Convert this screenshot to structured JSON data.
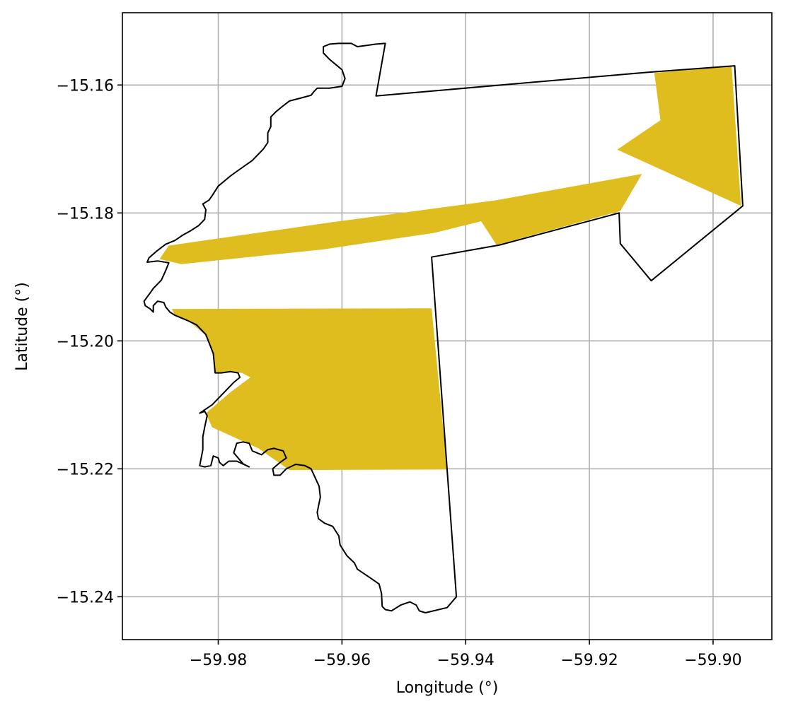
{
  "chart_data": {
    "type": "map",
    "xlabel": "Longitude (°)",
    "ylabel": "Latitude (°)",
    "xlim": [
      -59.9955,
      -59.8905
    ],
    "ylim": [
      -15.2467,
      -15.1487
    ],
    "grid": true,
    "x_ticks": [
      -59.98,
      -59.96,
      -59.94,
      -59.92,
      -59.9
    ],
    "x_tick_labels": [
      "−59.98",
      "−59.96",
      "−59.94",
      "−59.92",
      "−59.90"
    ],
    "y_ticks": [
      -15.16,
      -15.18,
      -15.2,
      -15.22,
      -15.24
    ],
    "y_tick_labels": [
      "−15.16",
      "−15.18",
      "−15.20",
      "−15.22",
      "−15.24"
    ],
    "colors": {
      "highlight_fill": "#dfbd1f",
      "boundary_stroke": "#000000",
      "grid": "#b0b0b0"
    },
    "highlight_polygons": [
      [
        [
          -59.988,
          -15.1851
        ],
        [
          -59.962,
          -15.1815
        ],
        [
          -59.935,
          -15.178
        ],
        [
          -59.9115,
          -15.1739
        ],
        [
          -59.915,
          -15.1797
        ],
        [
          -59.935,
          -15.185
        ],
        [
          -59.9375,
          -15.1813
        ],
        [
          -59.945,
          -15.1831
        ],
        [
          -59.963,
          -15.1857
        ],
        [
          -59.986,
          -15.188
        ],
        [
          -59.9895,
          -15.1872
        ]
      ],
      [
        [
          -59.9095,
          -15.1581
        ],
        [
          -59.897,
          -15.1571
        ],
        [
          -59.8955,
          -15.1789
        ],
        [
          -59.9155,
          -15.1701
        ],
        [
          -59.9085,
          -15.1655
        ]
      ],
      [
        [
          -59.9875,
          -15.195
        ],
        [
          -59.9455,
          -15.1949
        ],
        [
          -59.943,
          -15.2201
        ],
        [
          -59.9685,
          -15.2202
        ],
        [
          -59.9735,
          -15.2168
        ],
        [
          -59.981,
          -15.2135
        ],
        [
          -59.982,
          -15.2113
        ],
        [
          -59.978,
          -15.208
        ],
        [
          -59.9748,
          -15.2057
        ],
        [
          -59.9762,
          -15.205
        ],
        [
          -59.9785,
          -15.2048
        ],
        [
          -59.9805,
          -15.205
        ],
        [
          -59.9808,
          -15.202
        ],
        [
          -59.9822,
          -15.199
        ],
        [
          -59.985,
          -15.1967
        ],
        [
          -59.987,
          -15.196
        ]
      ]
    ],
    "boundary": [
      [
        -59.953,
        -15.1535
      ],
      [
        -59.9545,
        -15.1617
      ],
      [
        -59.9105,
        -15.158
      ],
      [
        -59.8965,
        -15.157
      ],
      [
        -59.8952,
        -15.1789
      ],
      [
        -59.91,
        -15.1906
      ],
      [
        -59.915,
        -15.1848
      ],
      [
        -59.9152,
        -15.18
      ],
      [
        -59.9345,
        -15.185
      ],
      [
        -59.9455,
        -15.1869
      ],
      [
        -59.9415,
        -15.24
      ],
      [
        -59.943,
        -15.2417
      ],
      [
        -59.9465,
        -15.2425
      ],
      [
        -59.9475,
        -15.2422
      ],
      [
        -59.948,
        -15.2413
      ],
      [
        -59.949,
        -15.2408
      ],
      [
        -59.9505,
        -15.2413
      ],
      [
        -59.952,
        -15.2422
      ],
      [
        -59.953,
        -15.242
      ],
      [
        -59.9535,
        -15.2415
      ],
      [
        -59.9536,
        -15.2395
      ],
      [
        -59.954,
        -15.238
      ],
      [
        -59.9555,
        -15.237
      ],
      [
        -59.9575,
        -15.2357
      ],
      [
        -59.958,
        -15.2347
      ],
      [
        -59.9592,
        -15.2336
      ],
      [
        -59.9603,
        -15.2319
      ],
      [
        -59.9605,
        -15.2305
      ],
      [
        -59.9615,
        -15.229
      ],
      [
        -59.9628,
        -15.2285
      ],
      [
        -59.9638,
        -15.2278
      ],
      [
        -59.964,
        -15.2268
      ],
      [
        -59.9635,
        -15.2244
      ],
      [
        -59.9637,
        -15.2227
      ],
      [
        -59.965,
        -15.22
      ],
      [
        -59.966,
        -15.2195
      ],
      [
        -59.9675,
        -15.2193
      ],
      [
        -59.969,
        -15.22
      ],
      [
        -59.97,
        -15.221
      ],
      [
        -59.971,
        -15.221
      ],
      [
        -59.9712,
        -15.22
      ],
      [
        -59.97,
        -15.219
      ],
      [
        -59.969,
        -15.2183
      ],
      [
        -59.9695,
        -15.2172
      ],
      [
        -59.971,
        -15.2168
      ],
      [
        -59.972,
        -15.217
      ],
      [
        -59.973,
        -15.2178
      ],
      [
        -59.9745,
        -15.2172
      ],
      [
        -59.975,
        -15.216
      ],
      [
        -59.976,
        -15.2158
      ],
      [
        -59.977,
        -15.216
      ],
      [
        -59.9775,
        -15.2175
      ],
      [
        -59.976,
        -15.2192
      ],
      [
        -59.975,
        -15.2197
      ],
      [
        -59.977,
        -15.2188
      ],
      [
        -59.9783,
        -15.2188
      ],
      [
        -59.9792,
        -15.2195
      ],
      [
        -59.9798,
        -15.219
      ],
      [
        -59.98,
        -15.2183
      ],
      [
        -59.9808,
        -15.218
      ],
      [
        -59.9812,
        -15.2195
      ],
      [
        -59.9822,
        -15.2197
      ],
      [
        -59.983,
        -15.2195
      ],
      [
        -59.9825,
        -15.217
      ],
      [
        -59.9825,
        -15.215
      ],
      [
        -59.9822,
        -15.2135
      ],
      [
        -59.9818,
        -15.2117
      ],
      [
        -59.9822,
        -15.211
      ],
      [
        -59.983,
        -15.2113
      ],
      [
        -59.981,
        -15.21
      ],
      [
        -59.979,
        -15.208
      ],
      [
        -59.9775,
        -15.2065
      ],
      [
        -59.9765,
        -15.2057
      ],
      [
        -59.9768,
        -15.205
      ],
      [
        -59.978,
        -15.2048
      ],
      [
        -59.9795,
        -15.205
      ],
      [
        -59.9805,
        -15.205
      ],
      [
        -59.9808,
        -15.202
      ],
      [
        -59.982,
        -15.199
      ],
      [
        -59.9835,
        -15.1975
      ],
      [
        -59.985,
        -15.1968
      ],
      [
        -59.987,
        -15.196
      ],
      [
        -59.9878,
        -15.1955
      ],
      [
        -59.9885,
        -15.1947
      ],
      [
        -59.9888,
        -15.194
      ],
      [
        -59.9898,
        -15.1938
      ],
      [
        -59.9905,
        -15.1945
      ],
      [
        -59.9905,
        -15.1955
      ],
      [
        -59.991,
        -15.195
      ],
      [
        -59.9918,
        -15.1945
      ],
      [
        -59.992,
        -15.1938
      ],
      [
        -59.991,
        -15.1925
      ],
      [
        -59.9905,
        -15.1918
      ],
      [
        -59.9892,
        -15.1905
      ],
      [
        -59.9885,
        -15.189
      ],
      [
        -59.988,
        -15.1878
      ],
      [
        -59.9898,
        -15.1875
      ],
      [
        -59.9915,
        -15.1877
      ],
      [
        -59.9912,
        -15.187
      ],
      [
        -59.99,
        -15.186
      ],
      [
        -59.9885,
        -15.1849
      ],
      [
        -59.987,
        -15.1843
      ],
      [
        -59.9858,
        -15.1835
      ],
      [
        -59.9845,
        -15.1828
      ],
      [
        -59.9832,
        -15.182
      ],
      [
        -59.9822,
        -15.181
      ],
      [
        -59.982,
        -15.1795
      ],
      [
        -59.9825,
        -15.1786
      ],
      [
        -59.9815,
        -15.178
      ],
      [
        -59.981,
        -15.1773
      ],
      [
        -59.98,
        -15.1758
      ],
      [
        -59.979,
        -15.175
      ],
      [
        -59.978,
        -15.1742
      ],
      [
        -59.977,
        -15.1735
      ],
      [
        -59.9745,
        -15.1718
      ],
      [
        -59.9727,
        -15.17
      ],
      [
        -59.972,
        -15.169
      ],
      [
        -59.972,
        -15.1675
      ],
      [
        -59.9715,
        -15.1665
      ],
      [
        -59.9715,
        -15.165
      ],
      [
        -59.9707,
        -15.1642
      ],
      [
        -59.9697,
        -15.1634
      ],
      [
        -59.9685,
        -15.1625
      ],
      [
        -59.9665,
        -15.162
      ],
      [
        -59.965,
        -15.1616
      ],
      [
        -59.9645,
        -15.161
      ],
      [
        -59.964,
        -15.1605
      ],
      [
        -59.962,
        -15.1605
      ],
      [
        -59.96,
        -15.1602
      ],
      [
        -59.9595,
        -15.159
      ],
      [
        -59.96,
        -15.1576
      ],
      [
        -59.961,
        -15.1568
      ],
      [
        -59.962,
        -15.156
      ],
      [
        -59.963,
        -15.155
      ],
      [
        -59.963,
        -15.154
      ],
      [
        -59.962,
        -15.1536
      ],
      [
        -59.9605,
        -15.1535
      ],
      [
        -59.9585,
        -15.1535
      ],
      [
        -59.9575,
        -15.154
      ],
      [
        -59.956,
        -15.1538
      ],
      [
        -59.9545,
        -15.1536
      ],
      [
        -59.953,
        -15.1535
      ]
    ]
  }
}
